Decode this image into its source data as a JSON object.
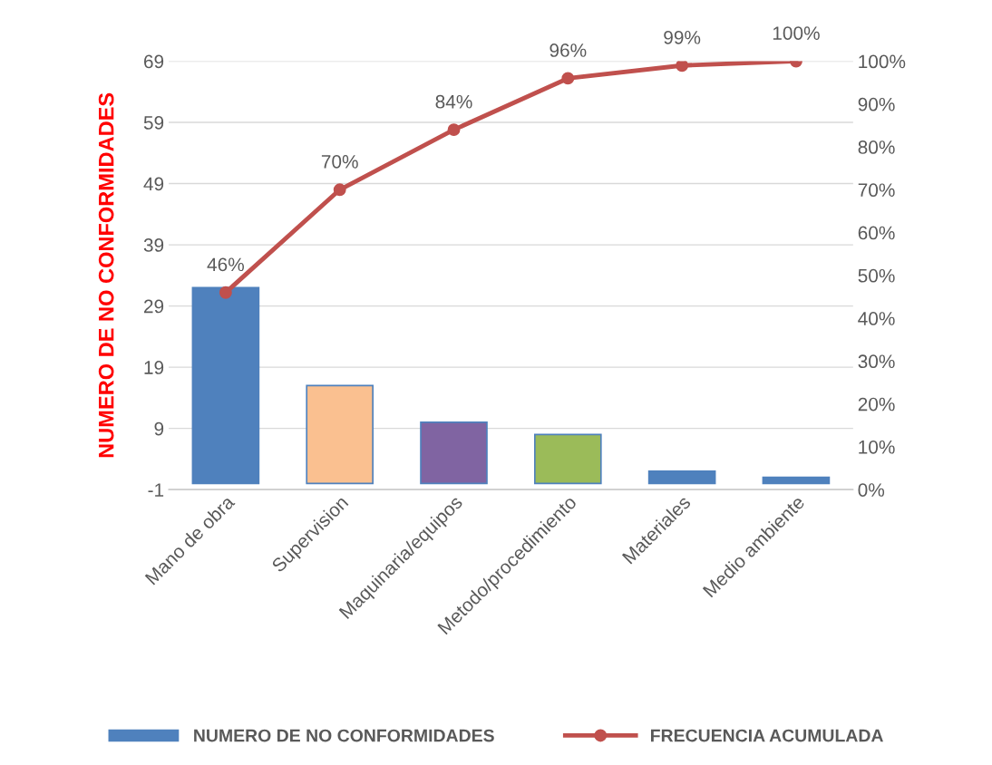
{
  "chart_data": {
    "type": "bar",
    "ylabel": "NUMERO DE NO CONFORMIDADES",
    "categories": [
      "Mano de obra",
      "Supervision",
      "Maquinaria/equipos",
      "Metodo/procedimiento",
      "Materiales",
      "Medio ambiente"
    ],
    "series": [
      {
        "name": "NUMERO DE NO CONFORMIDADES",
        "color": "#4f81bd",
        "colors": [
          "#4f81bd",
          "#fac090",
          "#8064a2",
          "#9bbb59",
          "#4f81bd",
          "#4f81bd"
        ],
        "values": [
          32,
          16,
          10,
          8,
          2,
          1
        ]
      },
      {
        "name": "FRECUENCIA ACUMULADA",
        "type": "line",
        "axis": "y2",
        "color": "#c0504d",
        "marker": "circle",
        "value_labels": [
          "46%",
          "70%",
          "84%",
          "96%",
          "99%",
          "100%"
        ],
        "values": [
          46,
          70,
          84,
          96,
          99,
          100
        ]
      }
    ],
    "ylim": [
      -1,
      69
    ],
    "yticks": [
      -1,
      9,
      19,
      29,
      39,
      49,
      59,
      69
    ],
    "y2lim": [
      0,
      100
    ],
    "y2ticks": [
      {
        "value": 0,
        "label": "0%"
      },
      {
        "value": 10,
        "label": "10%"
      },
      {
        "value": 20,
        "label": "20%"
      },
      {
        "value": 30,
        "label": "30%"
      },
      {
        "value": 40,
        "label": "40%"
      },
      {
        "value": 50,
        "label": "50%"
      },
      {
        "value": 60,
        "label": "60%"
      },
      {
        "value": 70,
        "label": "70%"
      },
      {
        "value": 80,
        "label": "80%"
      },
      {
        "value": 90,
        "label": "90%"
      },
      {
        "value": 100,
        "label": "100%"
      }
    ],
    "grid": "y",
    "legend": "bottom"
  }
}
